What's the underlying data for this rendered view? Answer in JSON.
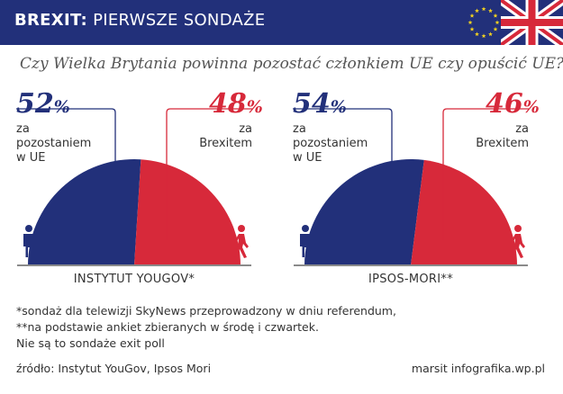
{
  "header": {
    "title_bold": "BREXIT:",
    "title_rest": "PIERWSZE SONDAŻE",
    "eu_flag_icon": "eu-flag-icon",
    "uk_flag_icon": "uk-flag-icon"
  },
  "question": "Czy Wielka Brytania powinna pozostać członkiem UE czy opuścić UE?",
  "colors": {
    "remain": "#22307a",
    "leave": "#d7293a",
    "baseline": "#8a8a8a"
  },
  "icons": {
    "remain": "standing-person-icon",
    "leave": "walking-person-icon"
  },
  "chart_data": [
    {
      "type": "pie",
      "shape": "semicircle",
      "institute": "INSTYTUT YOUGOV*",
      "slices": [
        {
          "value_text": "52",
          "value": 52,
          "unit": "%",
          "label": "za\npozostaniem\nw UE",
          "color": "#22307a"
        },
        {
          "value_text": "48",
          "value": 48,
          "unit": "%",
          "label": "za\nBrexitem",
          "color": "#d7293a"
        }
      ]
    },
    {
      "type": "pie",
      "shape": "semicircle",
      "institute": "IPSOS-MORI**",
      "slices": [
        {
          "value_text": "54",
          "value": 54,
          "unit": "%",
          "label": "za\npozostaniem\nw UE",
          "color": "#22307a"
        },
        {
          "value_text": "46",
          "value": 46,
          "unit": "%",
          "label": "za\nBrexitem",
          "color": "#d7293a"
        }
      ]
    }
  ],
  "footnotes": [
    "*sondaż dla telewizji SkyNews przeprowadzony w dniu referendum,",
    "**na podstawie ankiet zbieranych w środę i czwartek.",
    "Nie są to sondaże exit poll"
  ],
  "source": "źródło: Instytut YouGov, Ipsos Mori",
  "credit": "marsit infografika.wp.pl"
}
